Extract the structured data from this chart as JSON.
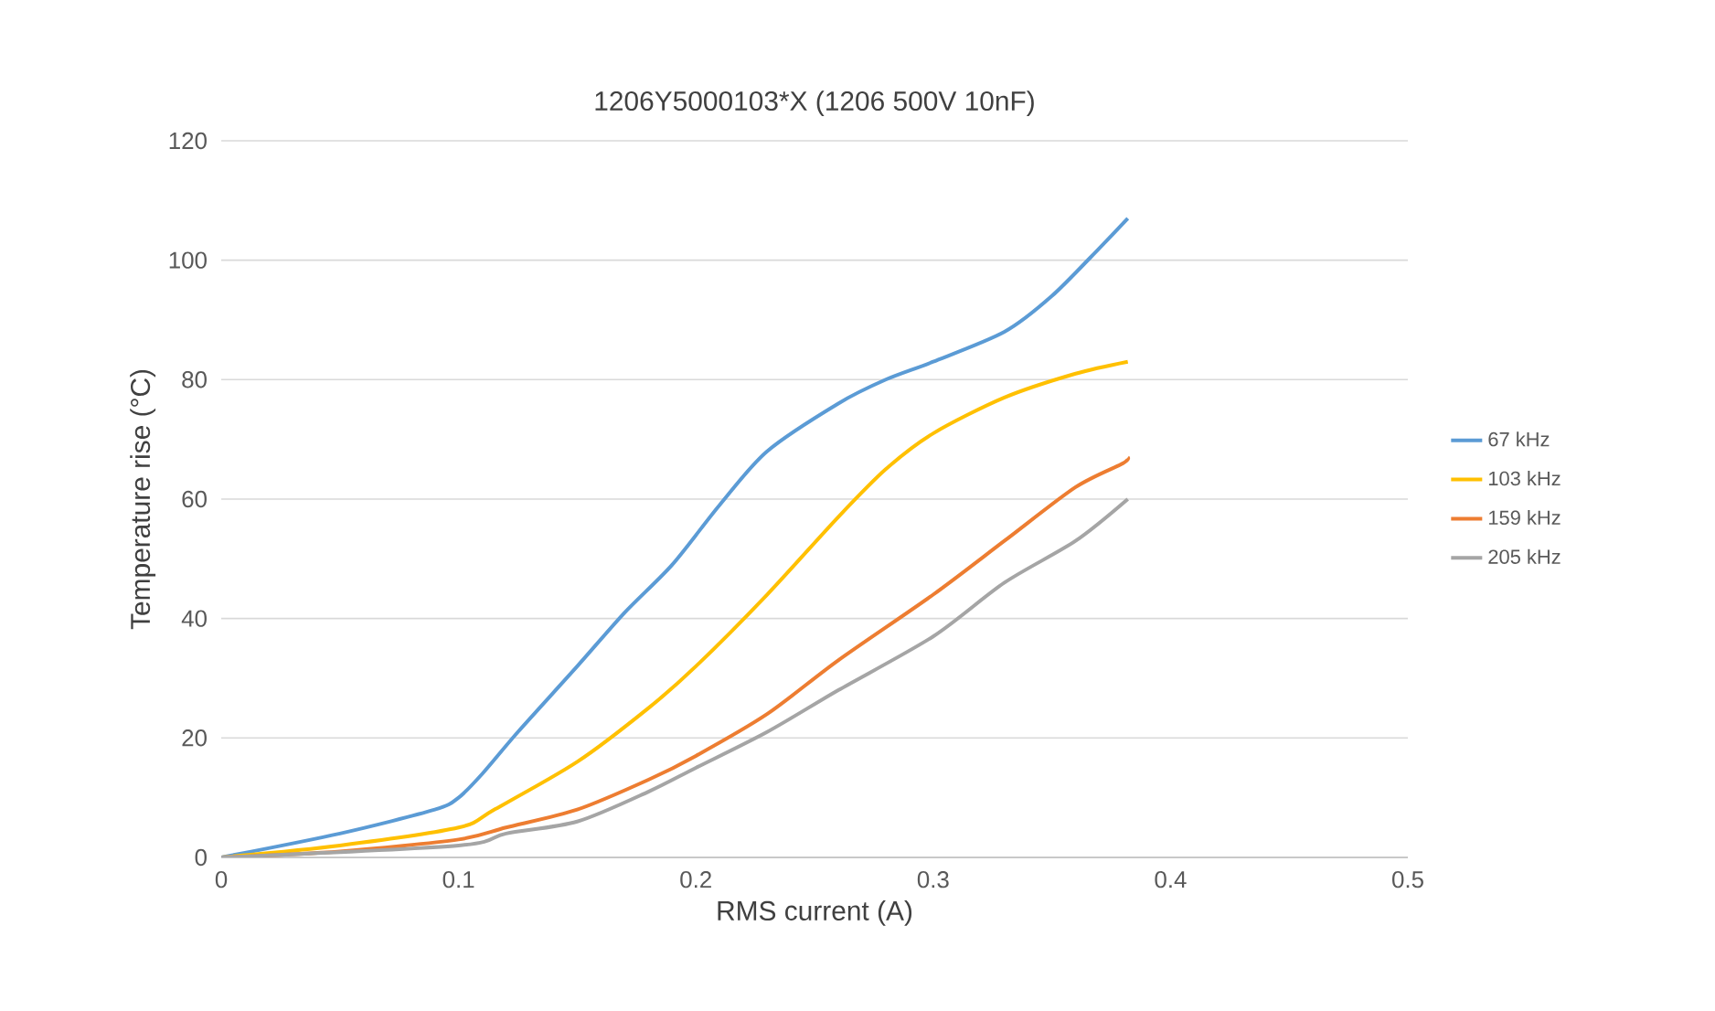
{
  "chart_data": {
    "type": "line",
    "title": "1206Y5000103*X (1206 500V 10nF)",
    "xlabel": "RMS current (A)",
    "ylabel": "Temperature rise (°C)",
    "xlim": [
      0,
      0.5
    ],
    "xticks": [
      0,
      0.1,
      0.2,
      0.3,
      0.4,
      0.5
    ],
    "ylim": [
      0,
      120
    ],
    "yticks": [
      0,
      20,
      40,
      60,
      80,
      100,
      120
    ],
    "grid": "y",
    "legend": "right",
    "marker": "none",
    "line_style": "solid",
    "series": [
      {
        "name": "67 kHz",
        "color": "#5b9bd5",
        "x": [
          0,
          0.05,
          0.09,
          0.1,
          0.11,
          0.125,
          0.15,
          0.17,
          0.19,
          0.21,
          0.23,
          0.26,
          0.28,
          0.3,
          0.33,
          0.35,
          0.37,
          0.382
        ],
        "values": [
          0,
          4,
          8,
          10,
          14,
          21,
          32,
          41,
          49,
          59,
          68,
          76,
          80,
          83,
          88,
          94,
          102,
          107
        ]
      },
      {
        "name": "103 kHz",
        "color": "#ffc000",
        "x": [
          0,
          0.05,
          0.1,
          0.115,
          0.15,
          0.18,
          0.2,
          0.23,
          0.26,
          0.28,
          0.3,
          0.33,
          0.36,
          0.382
        ],
        "values": [
          0,
          2,
          5,
          8,
          16,
          25,
          32,
          44,
          57,
          65,
          71,
          77,
          81,
          83
        ]
      },
      {
        "name": "159 kHz",
        "color": "#ed7d31",
        "x": [
          0,
          0.05,
          0.1,
          0.12,
          0.15,
          0.18,
          0.2,
          0.23,
          0.26,
          0.3,
          0.33,
          0.36,
          0.38,
          0.382
        ],
        "values": [
          0,
          1,
          3,
          5,
          8,
          13,
          17,
          24,
          33,
          44,
          53,
          62,
          66,
          67
        ]
      },
      {
        "name": "205 kHz",
        "color": "#a5a5a5",
        "x": [
          0,
          0.1,
          0.12,
          0.15,
          0.18,
          0.2,
          0.23,
          0.26,
          0.3,
          0.33,
          0.36,
          0.382
        ],
        "values": [
          0,
          2,
          4,
          6,
          11,
          15,
          21,
          28,
          37,
          46,
          53,
          60
        ]
      }
    ]
  }
}
